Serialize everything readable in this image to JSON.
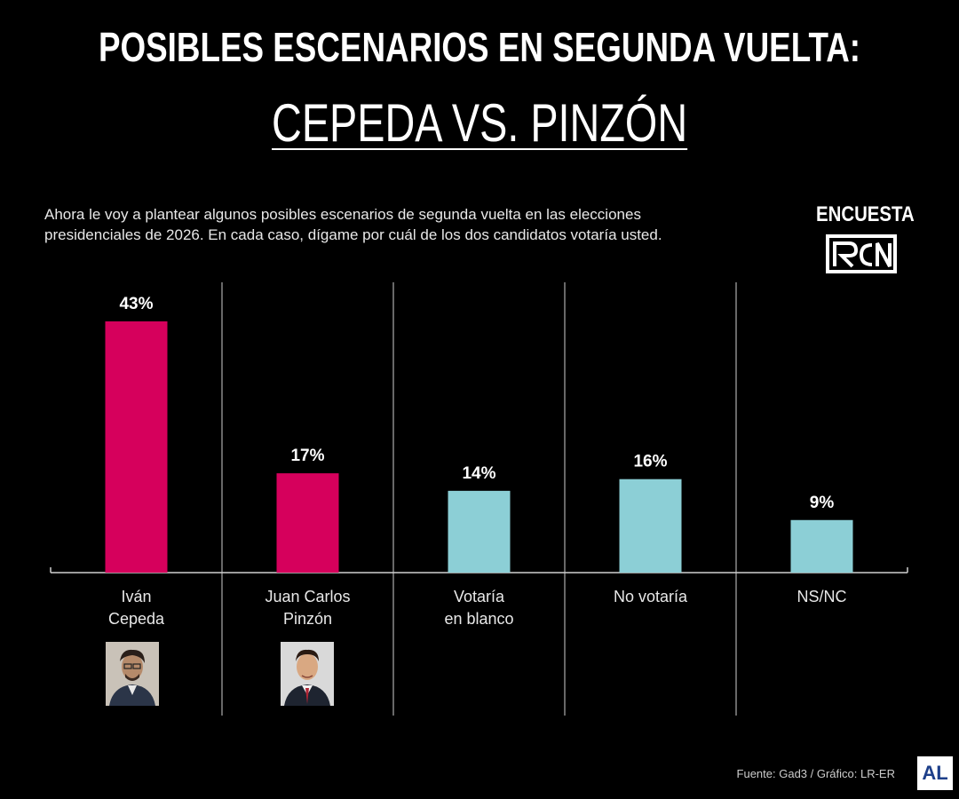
{
  "header": {
    "title": "POSIBLES ESCENARIOS EN SEGUNDA VUELTA:",
    "subtitle": "CEPEDA VS. PINZÓN"
  },
  "question": "Ahora le voy a plantear algunos posibles escenarios de segunda vuelta en las elecciones presidenciales de 2026. En cada caso, dígame por cuál de los dos candidatos votaría usted.",
  "brand": {
    "label": "ENCUESTA",
    "logo_text": "RCN"
  },
  "footer": {
    "source": "Fuente: Gad3 / Gráfico: LR-ER",
    "badge": "AL"
  },
  "colors": {
    "candidate": "#d6005c",
    "other": "#8ccfd6",
    "background": "#000000"
  },
  "chart_data": {
    "type": "bar",
    "title": "CEPEDA VS. PINZÓN",
    "categories": [
      [
        "Iván",
        "Cepeda"
      ],
      [
        "Juan Carlos",
        "Pinzón"
      ],
      [
        "Votaría",
        "en blanco"
      ],
      [
        "No votaría"
      ],
      [
        "NS/NC"
      ]
    ],
    "values": [
      43,
      17,
      14,
      16,
      9
    ],
    "labels": [
      "43%",
      "17%",
      "14%",
      "16%",
      "9%"
    ],
    "bar_colors": [
      "#d6005c",
      "#d6005c",
      "#8ccfd6",
      "#8ccfd6",
      "#8ccfd6"
    ],
    "ylim": [
      0,
      43
    ],
    "unit": "%"
  }
}
